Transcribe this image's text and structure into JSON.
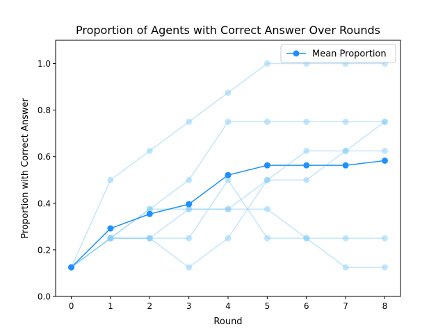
{
  "chart_data": {
    "type": "line",
    "title": "Proportion of Agents with Correct Answer Over Rounds",
    "xlabel": "Round",
    "ylabel": "Proportion with Correct Answer",
    "x": [
      0,
      1,
      2,
      3,
      4,
      5,
      6,
      7,
      8
    ],
    "xlim": [
      -0.4,
      8.4
    ],
    "ylim": [
      0.0,
      1.1
    ],
    "xticks": [
      "0",
      "1",
      "2",
      "3",
      "4",
      "5",
      "6",
      "7",
      "8"
    ],
    "yticks": [
      "0.0",
      "0.2",
      "0.4",
      "0.6",
      "0.8",
      "1.0"
    ],
    "grid": false,
    "legend_position": "top-right",
    "series": [
      {
        "role": "agent-run",
        "color": "#87cefa",
        "values": [
          0.125,
          0.5,
          0.625,
          0.75,
          0.875,
          1.0,
          1.0,
          1.0,
          1.0
        ]
      },
      {
        "role": "agent-run",
        "color": "#87cefa",
        "values": [
          0.125,
          0.25,
          0.375,
          0.5,
          0.75,
          0.75,
          0.75,
          0.75,
          0.75
        ]
      },
      {
        "role": "agent-run",
        "color": "#87cefa",
        "values": [
          0.125,
          0.25,
          0.25,
          0.375,
          0.375,
          0.5,
          0.625,
          0.625,
          0.625
        ]
      },
      {
        "role": "agent-run",
        "color": "#87cefa",
        "values": [
          0.125,
          0.25,
          0.25,
          0.125,
          0.25,
          0.5,
          0.5,
          0.625,
          0.75
        ]
      },
      {
        "role": "agent-run",
        "color": "#87cefa",
        "values": [
          0.125,
          0.25,
          0.375,
          0.375,
          0.375,
          0.375,
          0.25,
          0.25,
          0.25
        ]
      },
      {
        "role": "agent-run",
        "color": "#87cefa",
        "values": [
          0.125,
          0.25,
          0.25,
          0.25,
          0.5,
          0.25,
          0.25,
          0.125,
          0.125
        ]
      },
      {
        "role": "mean",
        "name": "Mean Proportion",
        "color": "#1e90ff",
        "values": [
          0.125,
          0.292,
          0.354,
          0.396,
          0.521,
          0.563,
          0.563,
          0.563,
          0.583
        ]
      }
    ]
  }
}
